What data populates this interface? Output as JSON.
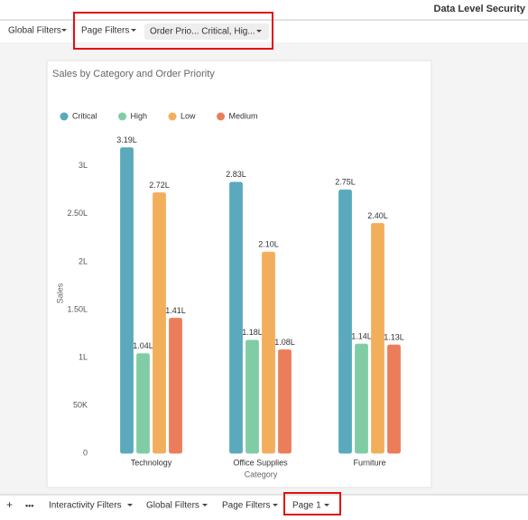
{
  "header": {
    "title": "Data Level Security"
  },
  "filter_bar": {
    "global_filters": "Global Filters",
    "page_filters": "Page Filters",
    "filter_chip": "Order Prio... Critical, Hig..."
  },
  "chart_data": {
    "type": "bar",
    "title": "Sales by Category and Order Priority",
    "x_label": "Category",
    "y_label": "Sales",
    "categories": [
      "Technology",
      "Office Supplies",
      "Furniture"
    ],
    "series": [
      {
        "name": "Critical",
        "color": "#5aa9bd",
        "values": [
          3.19,
          2.83,
          2.75
        ],
        "value_labels": [
          "3.19L",
          "2.83L",
          "2.75L"
        ]
      },
      {
        "name": "High",
        "color": "#80cda5",
        "values": [
          1.04,
          1.18,
          1.14
        ],
        "value_labels": [
          "1.04L",
          "1.18L",
          "1.14L"
        ]
      },
      {
        "name": "Low",
        "color": "#f3ae5c",
        "values": [
          2.72,
          2.1,
          2.4
        ],
        "value_labels": [
          "2.72L",
          "2.10L",
          "2.40L"
        ]
      },
      {
        "name": "Medium",
        "color": "#ec7d5b",
        "values": [
          1.41,
          1.08,
          1.13
        ],
        "value_labels": [
          "1.41L",
          "1.08L",
          "1.13L"
        ]
      }
    ],
    "ylim": [
      0,
      3.3
    ],
    "yticks": [
      0,
      {
        "value": 0.5,
        "label": "50K"
      },
      {
        "value": 1,
        "label": "1L"
      },
      {
        "value": 1.5,
        "label": "1.50L"
      },
      {
        "value": 2,
        "label": "2L"
      },
      {
        "value": 2.5,
        "label": "2.50L"
      },
      {
        "value": 3,
        "label": "3L"
      }
    ],
    "legend": "top-left",
    "grid": false
  },
  "footer": {
    "add": "+",
    "more": "•••",
    "tabs": [
      "Interactivity Filters",
      "Global Filters",
      "Page Filters",
      "Page 1"
    ]
  }
}
